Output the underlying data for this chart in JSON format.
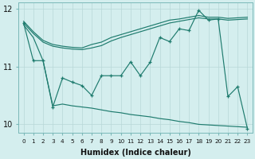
{
  "x": [
    0,
    1,
    2,
    3,
    4,
    5,
    6,
    7,
    8,
    9,
    10,
    11,
    12,
    13,
    14,
    15,
    16,
    17,
    18,
    19,
    20,
    21,
    22,
    23
  ],
  "line_upper1": [
    11.78,
    11.6,
    11.45,
    11.38,
    11.35,
    11.33,
    11.32,
    11.38,
    11.42,
    11.5,
    11.55,
    11.6,
    11.65,
    11.7,
    11.75,
    11.8,
    11.82,
    11.85,
    11.88,
    11.85,
    11.85,
    11.83,
    11.84,
    11.85
  ],
  "line_upper2": [
    11.75,
    11.57,
    11.42,
    11.35,
    11.32,
    11.3,
    11.29,
    11.32,
    11.36,
    11.44,
    11.5,
    11.55,
    11.6,
    11.65,
    11.7,
    11.75,
    11.78,
    11.81,
    11.84,
    11.82,
    11.82,
    11.8,
    11.81,
    11.82
  ],
  "line_zigzag": [
    11.75,
    11.1,
    11.1,
    10.3,
    10.8,
    10.73,
    10.67,
    10.5,
    10.84,
    10.84,
    10.84,
    11.08,
    10.84,
    11.07,
    11.5,
    11.43,
    11.65,
    11.62,
    11.97,
    11.8,
    11.82,
    10.48,
    10.65,
    9.93
  ],
  "line_smooth_down": [
    11.72,
    11.5,
    11.1,
    10.32,
    10.35,
    10.32,
    10.3,
    10.28,
    10.25,
    10.22,
    10.2,
    10.17,
    10.15,
    10.13,
    10.1,
    10.08,
    10.05,
    10.03,
    10.0,
    9.99,
    9.98,
    9.97,
    9.96,
    9.95
  ],
  "color": "#1e7b6e",
  "bg_color": "#d4eeee",
  "grid_color": "#b8d8d8",
  "xlabel": "Humidex (Indice chaleur)",
  "ylim": [
    9.85,
    12.1
  ],
  "xlim": [
    -0.5,
    23.5
  ],
  "yticks": [
    10,
    11,
    12
  ],
  "xticks": [
    0,
    1,
    2,
    3,
    4,
    5,
    6,
    7,
    8,
    9,
    10,
    11,
    12,
    13,
    14,
    15,
    16,
    17,
    18,
    19,
    20,
    21,
    22,
    23
  ]
}
